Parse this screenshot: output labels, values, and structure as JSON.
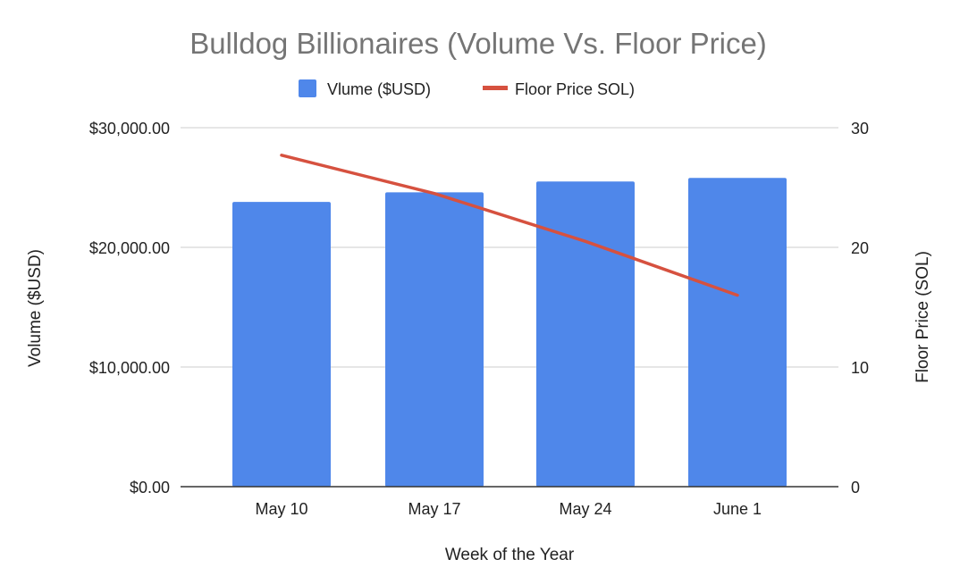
{
  "chart_data": {
    "type": "bar",
    "title": "Bulldog Billionaires  (Volume Vs. Floor Price)",
    "xlabel": "Week of the Year",
    "ylabel": "Volume ($USD)",
    "y2label": "Floor Price (SOL)",
    "categories": [
      "May 10",
      "May 17",
      "May 24",
      "June 1"
    ],
    "series": [
      {
        "name": "Vlume ($USD)",
        "kind": "bar",
        "axis": "left",
        "color": "#4f87ea",
        "values": [
          23800,
          24600,
          25500,
          25800
        ]
      },
      {
        "name": "Floor Price SOL)",
        "kind": "line",
        "axis": "right",
        "color": "#d6513f",
        "values": [
          27.7,
          24.5,
          20.5,
          16.0
        ]
      }
    ],
    "ylim": [
      0,
      30000
    ],
    "y2lim": [
      0,
      30
    ],
    "yticks": [
      "$0.00",
      "$10,000.00",
      "$20,000.00",
      "$30,000.00"
    ],
    "y2ticks": [
      "0",
      "10",
      "20",
      "30"
    ],
    "grid": true,
    "legend": "top"
  }
}
